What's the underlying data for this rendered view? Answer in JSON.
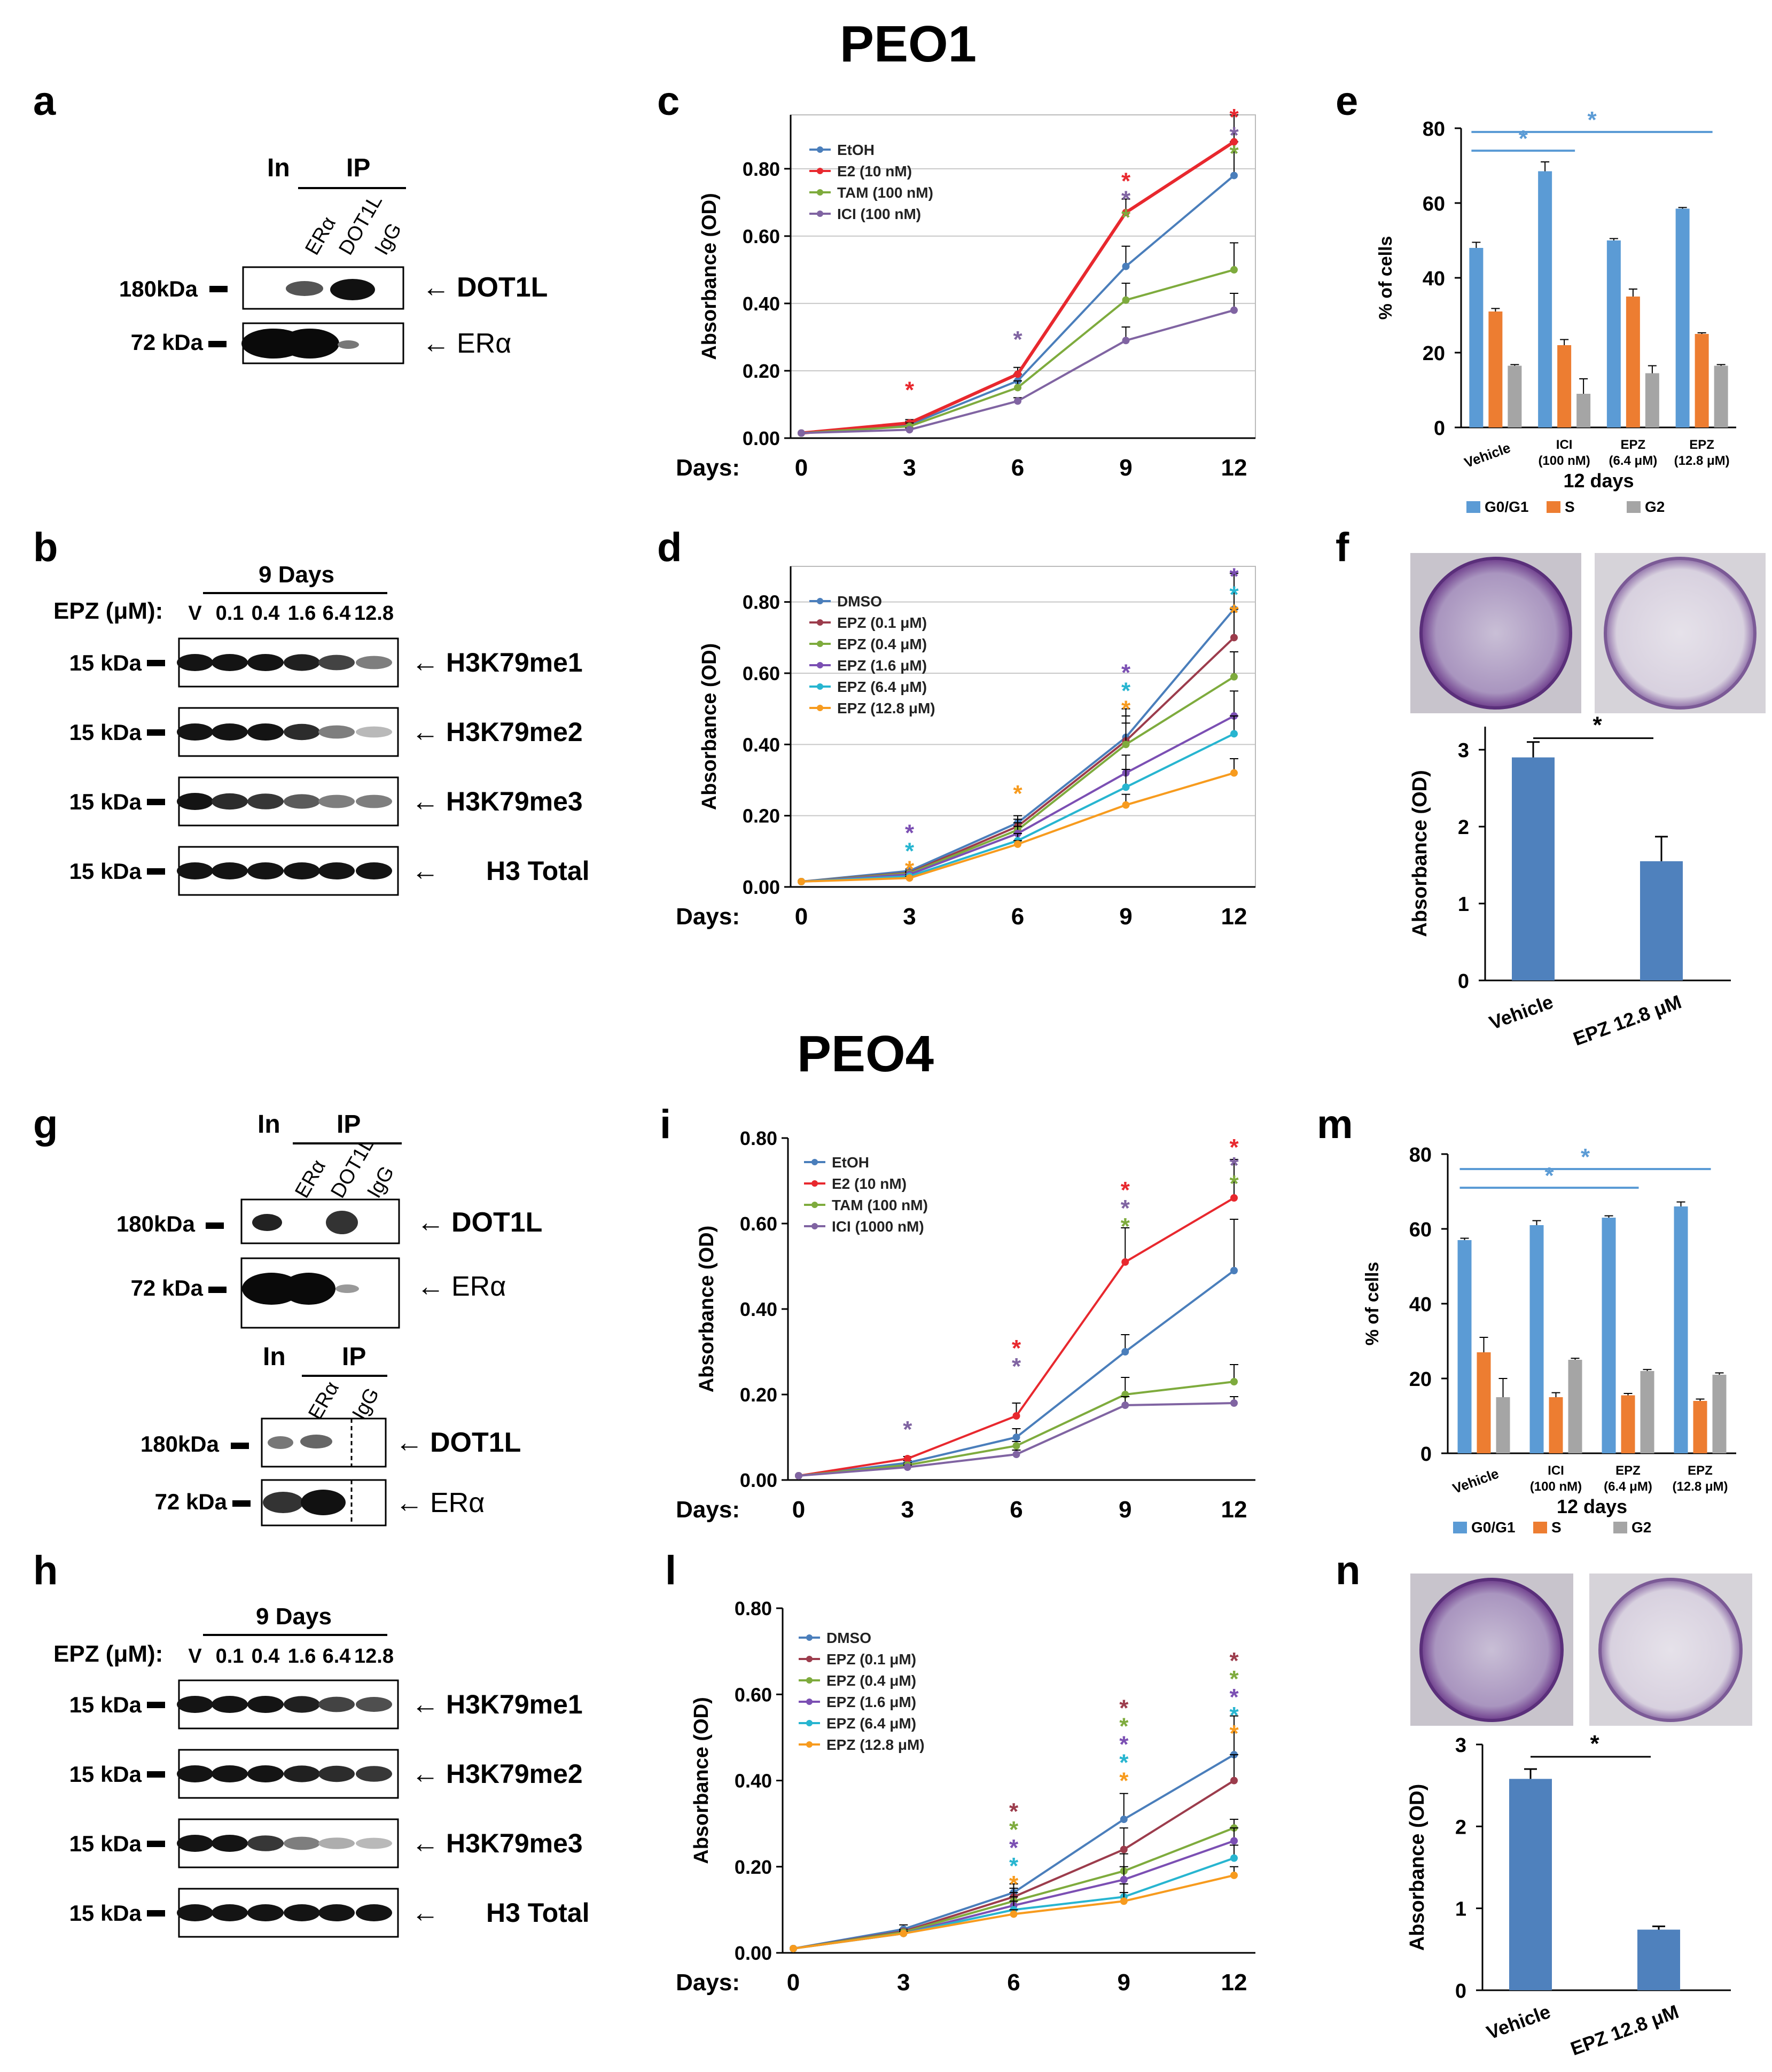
{
  "titles": {
    "top": "PEO1",
    "bottom": "PEO4"
  },
  "panel_letters": {
    "a": "a",
    "b": "b",
    "c": "c",
    "d": "d",
    "e": "e",
    "f": "f",
    "g": "g",
    "h": "h",
    "i": "i",
    "l": "l",
    "m": "m",
    "n": "n"
  },
  "colors": {
    "blue": "#4a7ebb",
    "red": "#e8282e",
    "green": "#7eab3d",
    "purple": "#8064a2",
    "maroon": "#9c3c4c",
    "violet": "#7b4fb3",
    "cyan": "#27b5d0",
    "orange": "#f79b1e",
    "bar_blue": "#5b9bd5",
    "bar_orange": "#ed7d31",
    "bar_gray": "#a5a5a5",
    "bar_dark_blue": "#4f81bd",
    "violet_plate": "#6e3d8c"
  },
  "blots": {
    "a": {
      "header_in": "In",
      "header_ip": "IP",
      "lanes": [
        "ERα",
        "DOT1L",
        "IgG"
      ],
      "rows": [
        {
          "kda": "180kDa",
          "target": "DOT1L"
        },
        {
          "kda": "72 kDa",
          "target": "ERα"
        }
      ]
    },
    "b": {
      "duration": "9 Days",
      "dose_label": "EPZ (μM):",
      "doses": [
        "V",
        "0.1",
        "0.4",
        "1.6",
        "6.4",
        "12.8"
      ],
      "rows": [
        {
          "kda": "15 kDa",
          "target": "H3K79me1"
        },
        {
          "kda": "15 kDa",
          "target": "H3K79me2"
        },
        {
          "kda": "15 kDa",
          "target": "H3K79me3"
        },
        {
          "kda": "15 kDa",
          "target": "H3 Total"
        }
      ]
    },
    "g1": {
      "header_in": "In",
      "header_ip": "IP",
      "lanes": [
        "ERα",
        "DOT1L",
        "IgG"
      ],
      "rows": [
        {
          "kda": "180kDa",
          "target": "DOT1L"
        },
        {
          "kda": "72 kDa",
          "target": "ERα"
        }
      ]
    },
    "g2": {
      "header_in": "In",
      "header_ip": "IP",
      "lanes": [
        "ERα",
        "IgG"
      ],
      "rows": [
        {
          "kda": "180kDa",
          "target": "DOT1L"
        },
        {
          "kda": "72 kDa",
          "target": "ERα"
        }
      ]
    },
    "h": {
      "duration": "9 Days",
      "dose_label": "EPZ (μM):",
      "doses": [
        "V",
        "0.1",
        "0.4",
        "1.6",
        "6.4",
        "12.8"
      ],
      "rows": [
        {
          "kda": "15 kDa",
          "target": "H3K79me1"
        },
        {
          "kda": "15 kDa",
          "target": "H3K79me2"
        },
        {
          "kda": "15 kDa",
          "target": "H3K79me3"
        },
        {
          "kda": "15 kDa",
          "target": "H3 Total"
        }
      ]
    }
  },
  "chart_data": [
    {
      "id": "c",
      "type": "line",
      "ylabel": "Absorbance (OD)",
      "xlabel": "Days:",
      "x": [
        0,
        3,
        6,
        9,
        12
      ],
      "ylim": [
        0,
        0.96
      ],
      "yticks": [
        0,
        0.2,
        0.4,
        0.6,
        0.8
      ],
      "ytick_labels": [
        "0.00",
        "0.20",
        "0.40",
        "0.60",
        "0.80"
      ],
      "ytick_precision": 2,
      "grid": true,
      "show_top_tick": false,
      "series": [
        {
          "name": "EtOH",
          "color": "blue",
          "values": [
            0.015,
            0.04,
            0.17,
            0.51,
            0.78
          ],
          "err": [
            0.003,
            0.01,
            0.02,
            0.06,
            0.1
          ]
        },
        {
          "name": "E2 (10 nM)",
          "color": "red",
          "values": [
            0.015,
            0.045,
            0.19,
            0.67,
            0.88
          ],
          "err": [
            0.003,
            0.01,
            0.02,
            0.04,
            0.08
          ]
        },
        {
          "name": "TAM (100 nM)",
          "color": "green",
          "values": [
            0.015,
            0.035,
            0.15,
            0.41,
            0.5
          ],
          "err": [
            0.003,
            0.01,
            0.02,
            0.05,
            0.08
          ]
        },
        {
          "name": "ICI (100 nM)",
          "color": "purple",
          "values": [
            0.015,
            0.025,
            0.11,
            0.29,
            0.38
          ],
          "err": [
            0.003,
            0.005,
            0.01,
            0.04,
            0.05
          ]
        }
      ],
      "stars": [
        {
          "x": 3,
          "y": 0.12,
          "colors": [
            "red"
          ]
        },
        {
          "x": 6,
          "y": 0.27,
          "colors": [
            "purple"
          ]
        },
        {
          "x": 9,
          "y": 0.74,
          "colors": [
            "red",
            "purple",
            "green"
          ]
        },
        {
          "x": 12,
          "y": 0.93,
          "colors": [
            "red",
            "purple",
            "green"
          ]
        }
      ]
    },
    {
      "id": "d",
      "type": "line",
      "ylabel": "Absorbance (OD)",
      "xlabel": "Days:",
      "x": [
        0,
        3,
        6,
        9,
        12
      ],
      "ylim": [
        0,
        0.9
      ],
      "yticks": [
        0,
        0.2,
        0.4,
        0.6,
        0.8
      ],
      "ytick_labels": [
        "0.00",
        "0.20",
        "0.40",
        "0.60",
        "0.80"
      ],
      "ytick_precision": 2,
      "grid": true,
      "show_top_tick": false,
      "series": [
        {
          "name": "DMSO",
          "color": "blue",
          "values": [
            0.015,
            0.045,
            0.18,
            0.42,
            0.78
          ],
          "err": [
            0.003,
            0.005,
            0.02,
            0.08,
            0.1
          ]
        },
        {
          "name": "EPZ (0.1 μM)",
          "color": "maroon",
          "values": [
            0.015,
            0.04,
            0.17,
            0.41,
            0.7
          ],
          "err": [
            0.003,
            0.005,
            0.02,
            0.07,
            0.08
          ]
        },
        {
          "name": "EPZ (0.4 μM)",
          "color": "green",
          "values": [
            0.015,
            0.038,
            0.16,
            0.4,
            0.59
          ],
          "err": [
            0.003,
            0.005,
            0.02,
            0.06,
            0.07
          ]
        },
        {
          "name": "EPZ (1.6 μM)",
          "color": "violet",
          "values": [
            0.015,
            0.035,
            0.15,
            0.32,
            0.48
          ],
          "err": [
            0.003,
            0.005,
            0.02,
            0.05,
            0.07
          ]
        },
        {
          "name": "EPZ (6.4 μM)",
          "color": "cyan",
          "values": [
            0.015,
            0.03,
            0.13,
            0.28,
            0.43
          ],
          "err": [
            0.003,
            0.005,
            0.02,
            0.05,
            0.05
          ]
        },
        {
          "name": "EPZ (12.8 μM)",
          "color": "orange",
          "values": [
            0.015,
            0.025,
            0.12,
            0.23,
            0.32
          ],
          "err": [
            0.003,
            0.005,
            0.01,
            0.03,
            0.04
          ]
        }
      ],
      "stars": [
        {
          "x": 3,
          "y": 0.13,
          "colors": [
            "violet",
            "cyan",
            "orange"
          ]
        },
        {
          "x": 6,
          "y": 0.24,
          "colors": [
            "orange"
          ]
        },
        {
          "x": 9,
          "y": 0.58,
          "colors": [
            "violet",
            "cyan",
            "orange"
          ]
        },
        {
          "x": 12,
          "y": 0.85,
          "colors": [
            "violet",
            "cyan",
            "orange"
          ]
        }
      ]
    },
    {
      "id": "i",
      "type": "line",
      "ylabel": "Absorbance (OD)",
      "xlabel": "Days:",
      "x": [
        0,
        3,
        6,
        9,
        12
      ],
      "ylim": [
        0,
        0.8
      ],
      "yticks": [
        0,
        0.2,
        0.4,
        0.6,
        0.8
      ],
      "ytick_labels": [
        "0.00",
        "0.20",
        "0.40",
        "0.60",
        "0.80"
      ],
      "ytick_precision": 2,
      "grid": false,
      "show_top_tick": true,
      "series": [
        {
          "name": "EtOH",
          "color": "blue",
          "values": [
            0.01,
            0.04,
            0.1,
            0.3,
            0.49
          ],
          "err": [
            0.002,
            0.005,
            0.02,
            0.04,
            0.12
          ]
        },
        {
          "name": "E2 (10 nM)",
          "color": "red",
          "values": [
            0.01,
            0.05,
            0.15,
            0.51,
            0.66
          ],
          "err": [
            0.002,
            0.005,
            0.03,
            0.08,
            0.09
          ]
        },
        {
          "name": "TAM (100 nM)",
          "color": "green",
          "values": [
            0.01,
            0.035,
            0.08,
            0.2,
            0.23
          ],
          "err": [
            0.002,
            0.005,
            0.01,
            0.04,
            0.04
          ]
        },
        {
          "name": "ICI (1000 nM)",
          "color": "purple",
          "values": [
            0.01,
            0.03,
            0.06,
            0.175,
            0.18
          ],
          "err": [
            0.002,
            0.005,
            0.01,
            0.02,
            0.015
          ]
        }
      ],
      "stars": [
        {
          "x": 3,
          "y": 0.1,
          "colors": [
            "purple"
          ]
        },
        {
          "x": 6,
          "y": 0.29,
          "colors": [
            "red",
            "purple"
          ]
        },
        {
          "x": 9,
          "y": 0.66,
          "colors": [
            "red",
            "purple",
            "green"
          ]
        },
        {
          "x": 12,
          "y": 0.76,
          "colors": [
            "red",
            "purple",
            "green"
          ]
        }
      ]
    },
    {
      "id": "l",
      "type": "line",
      "ylabel": "Absorbance (OD)",
      "xlabel": "Days:",
      "x": [
        0,
        3,
        6,
        9,
        12
      ],
      "ylim": [
        0,
        0.8
      ],
      "yticks": [
        0,
        0.2,
        0.4,
        0.6,
        0.8
      ],
      "ytick_labels": [
        "0.00",
        "0.20",
        "0.40",
        "0.60",
        "0.80"
      ],
      "ytick_precision": 2,
      "grid": false,
      "show_top_tick": true,
      "series": [
        {
          "name": "DMSO",
          "color": "blue",
          "values": [
            0.01,
            0.055,
            0.14,
            0.31,
            0.46
          ],
          "err": [
            0.002,
            0.01,
            0.02,
            0.06,
            0.09
          ]
        },
        {
          "name": "EPZ (0.1 μM)",
          "color": "maroon",
          "values": [
            0.01,
            0.05,
            0.13,
            0.24,
            0.4
          ],
          "err": [
            0.002,
            0.005,
            0.02,
            0.05,
            0.06
          ]
        },
        {
          "name": "EPZ (0.4 μM)",
          "color": "green",
          "values": [
            0.01,
            0.048,
            0.12,
            0.19,
            0.29
          ],
          "err": [
            0.002,
            0.005,
            0.02,
            0.04,
            0.02
          ]
        },
        {
          "name": "EPZ (1.6 μM)",
          "color": "violet",
          "values": [
            0.01,
            0.045,
            0.11,
            0.17,
            0.26
          ],
          "err": [
            0.002,
            0.005,
            0.02,
            0.03,
            0.03
          ]
        },
        {
          "name": "EPZ (6.4 μM)",
          "color": "cyan",
          "values": [
            0.01,
            0.045,
            0.1,
            0.13,
            0.22
          ],
          "err": [
            0.002,
            0.005,
            0.02,
            0.03,
            0.03
          ]
        },
        {
          "name": "EPZ (12.8 μM)",
          "color": "orange",
          "values": [
            0.01,
            0.045,
            0.09,
            0.12,
            0.18
          ],
          "err": [
            0.002,
            0.005,
            0.01,
            0.02,
            0.02
          ]
        }
      ],
      "stars": [
        {
          "x": 6,
          "y": 0.31,
          "colors": [
            "maroon",
            "green",
            "violet",
            "cyan",
            "orange"
          ]
        },
        {
          "x": 9,
          "y": 0.55,
          "colors": [
            "maroon",
            "green",
            "violet",
            "cyan",
            "orange"
          ]
        },
        {
          "x": 12,
          "y": 0.66,
          "colors": [
            "maroon",
            "green",
            "violet",
            "cyan",
            "orange"
          ]
        }
      ]
    },
    {
      "id": "e",
      "type": "bar",
      "ylabel": "% of cells",
      "xlabel": "12 days",
      "ylim": [
        0,
        80
      ],
      "yticks": [
        0,
        20,
        40,
        60,
        80
      ],
      "ytick_labels": [
        "0",
        "20",
        "40",
        "60",
        "80"
      ],
      "categories": [
        "Vehicle",
        "ICI|(100 nM)",
        "EPZ|(6.4 μM)",
        "EPZ|(12.8 μM)"
      ],
      "series": [
        {
          "name": "G0/G1",
          "color": "bar_blue",
          "values": [
            48,
            68.5,
            50,
            58.5
          ],
          "err": [
            1.5,
            2.5,
            0.5,
            0.3
          ]
        },
        {
          "name": "S",
          "color": "bar_orange",
          "values": [
            31,
            22,
            35,
            25
          ],
          "err": [
            0.8,
            1.5,
            2,
            0.3
          ]
        },
        {
          "name": "G2",
          "color": "bar_gray",
          "values": [
            16.5,
            9,
            14.5,
            16.5
          ],
          "err": [
            0.3,
            4,
            2,
            0.3
          ]
        }
      ],
      "brackets": [
        {
          "from": 0,
          "to": 1,
          "y": 74
        },
        {
          "from": 0,
          "to": 3,
          "y": 79
        }
      ]
    },
    {
      "id": "m",
      "type": "bar",
      "ylabel": "% of cells",
      "xlabel": "12 days",
      "ylim": [
        0,
        80
      ],
      "yticks": [
        0,
        20,
        40,
        60,
        80
      ],
      "ytick_labels": [
        "0",
        "20",
        "40",
        "60",
        "80"
      ],
      "categories": [
        "Vehicle",
        "ICI|(100 nM)",
        "EPZ|(6.4 μM)",
        "EPZ|(12.8 μM)"
      ],
      "series": [
        {
          "name": "G0/G1",
          "color": "bar_blue",
          "values": [
            57,
            61,
            63,
            66
          ],
          "err": [
            0.5,
            1.2,
            0.5,
            1.2
          ]
        },
        {
          "name": "S",
          "color": "bar_orange",
          "values": [
            27,
            15,
            15.5,
            14
          ],
          "err": [
            4,
            1.2,
            0.5,
            0.5
          ]
        },
        {
          "name": "G2",
          "color": "bar_gray",
          "values": [
            15,
            25,
            22,
            21
          ],
          "err": [
            5,
            0.4,
            0.4,
            0.5
          ]
        }
      ],
      "brackets": [
        {
          "from": 0,
          "to": 2,
          "y": 71
        },
        {
          "from": 0,
          "to": 3,
          "y": 76
        }
      ]
    },
    {
      "id": "f",
      "type": "bar",
      "ylabel": "Absorbance (OD)",
      "ylim": [
        0,
        3.3
      ],
      "yticks": [
        0,
        1,
        2,
        3
      ],
      "ytick_labels": [
        "0",
        "1",
        "2",
        "3"
      ],
      "categories": [
        "Vehicle",
        "EPZ 12.8 μM"
      ],
      "values": [
        2.9,
        1.55
      ],
      "err": [
        0.2,
        0.32
      ],
      "color": "bar_dark_blue",
      "sig_y": 3.15
    },
    {
      "id": "n",
      "type": "bar",
      "ylabel": "Absorbance (OD)",
      "ylim": [
        0,
        3
      ],
      "yticks": [
        0,
        1,
        2,
        3
      ],
      "ytick_labels": [
        "0",
        "1",
        "2",
        "3"
      ],
      "categories": [
        "Vehicle",
        "EPZ 12.8 μM"
      ],
      "values": [
        2.58,
        0.74
      ],
      "err": [
        0.12,
        0.04
      ],
      "color": "bar_dark_blue",
      "sig_y": 2.85
    }
  ],
  "significance_star": "*"
}
